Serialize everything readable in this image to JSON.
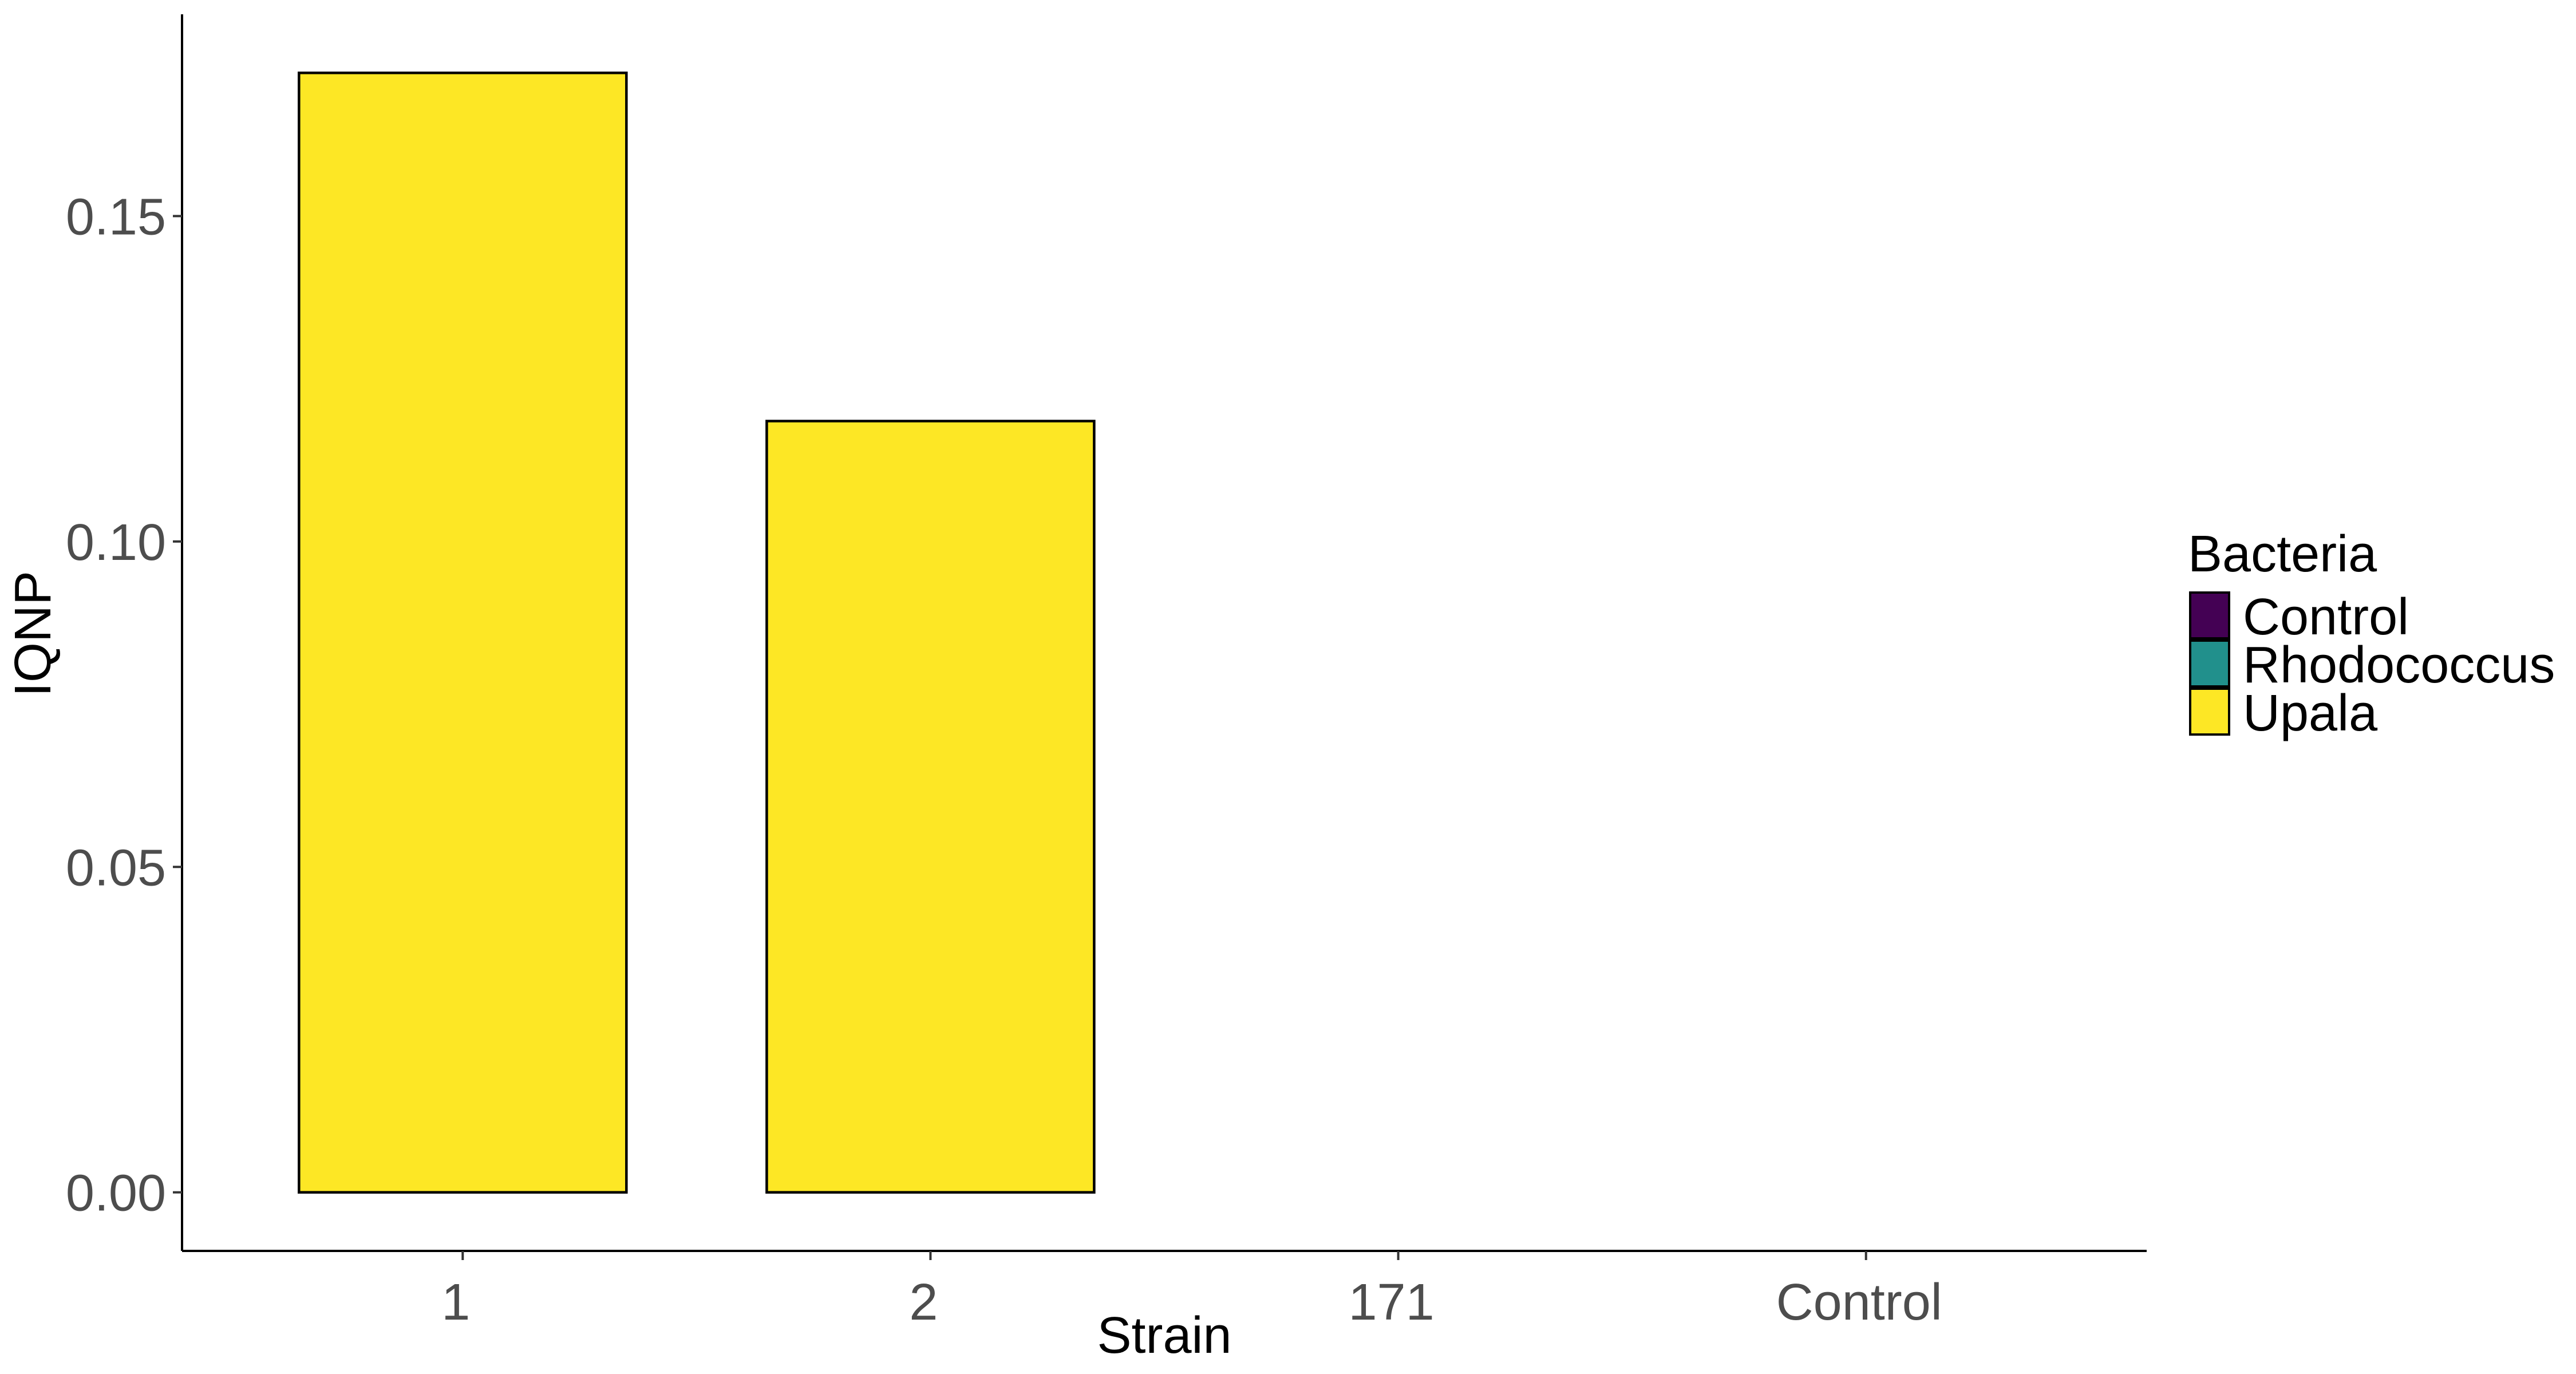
{
  "chart_data": {
    "type": "bar",
    "xlabel": "Strain",
    "ylabel": "IQNP",
    "categories": [
      "1",
      "2",
      "171",
      "Control"
    ],
    "values": [
      0.172,
      0.1185,
      0,
      0
    ],
    "fill_groups": [
      "Upala",
      "Upala",
      "Upala",
      "Upala"
    ],
    "ylim": [
      -0.009,
      0.181
    ],
    "yticks": [
      0.0,
      0.05,
      0.1,
      0.15
    ],
    "ytick_labels": [
      "0.00",
      "0.05",
      "0.10",
      "0.15"
    ],
    "grid": false,
    "legend": {
      "title": "Bacteria",
      "placement": "right",
      "entries": [
        {
          "name": "Control",
          "color": "#440154"
        },
        {
          "name": "Rhodococcus",
          "color": "#21908C"
        },
        {
          "name": "Upala",
          "color": "#FDE725"
        }
      ]
    }
  }
}
